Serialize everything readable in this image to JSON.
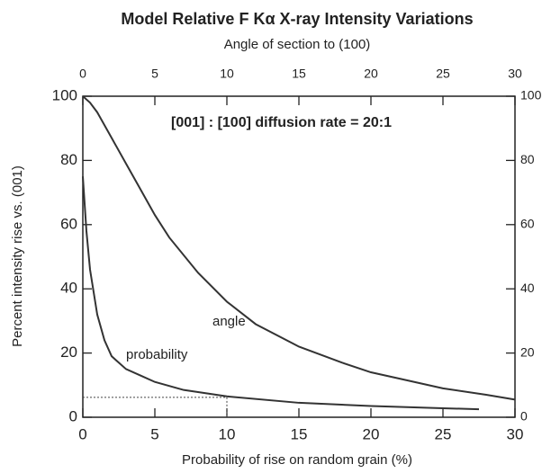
{
  "chart_data": {
    "type": "line",
    "title": "Model Relative F  Kα X-ray Intensity Variations",
    "x_label": "Probability of rise on random grain (%)",
    "x2_label": "Angle of section to (100)",
    "y_label": "Percent intensity rise vs. (001)",
    "annotation": "[001] : [100] diffusion rate = 20:1",
    "xlim": [
      0,
      30
    ],
    "xticks": [
      0,
      5,
      10,
      15,
      20,
      25,
      30
    ],
    "x2lim": [
      0,
      30
    ],
    "x2ticks": [
      0,
      5,
      10,
      15,
      20,
      25,
      30
    ],
    "ylim": [
      0,
      100
    ],
    "yticks": [
      0,
      20,
      40,
      60,
      80,
      100
    ],
    "y2lim": [
      0,
      100
    ],
    "y2ticks": [
      0,
      20,
      40,
      60,
      80,
      100
    ],
    "reference": {
      "x": 10,
      "y": 6.2
    },
    "series": [
      {
        "name": "angle",
        "color": "#333333",
        "x": [
          0,
          0.5,
          1,
          2,
          3,
          4,
          5,
          6,
          8,
          10,
          12,
          15,
          18,
          20,
          22,
          25,
          28,
          30
        ],
        "values": [
          100,
          98,
          95,
          87,
          79,
          71,
          63,
          56,
          45,
          36,
          29,
          22,
          17,
          14,
          12,
          9,
          7,
          5.5
        ]
      },
      {
        "name": "probability",
        "color": "#333333",
        "x": [
          0,
          0.25,
          0.5,
          1,
          1.5,
          2,
          3,
          4,
          5,
          7,
          10,
          15,
          20,
          25,
          27.5
        ],
        "values": [
          75,
          58,
          46,
          32,
          24,
          19,
          15,
          13,
          11,
          8.5,
          6.5,
          4.5,
          3.5,
          2.8,
          2.5
        ]
      }
    ]
  }
}
